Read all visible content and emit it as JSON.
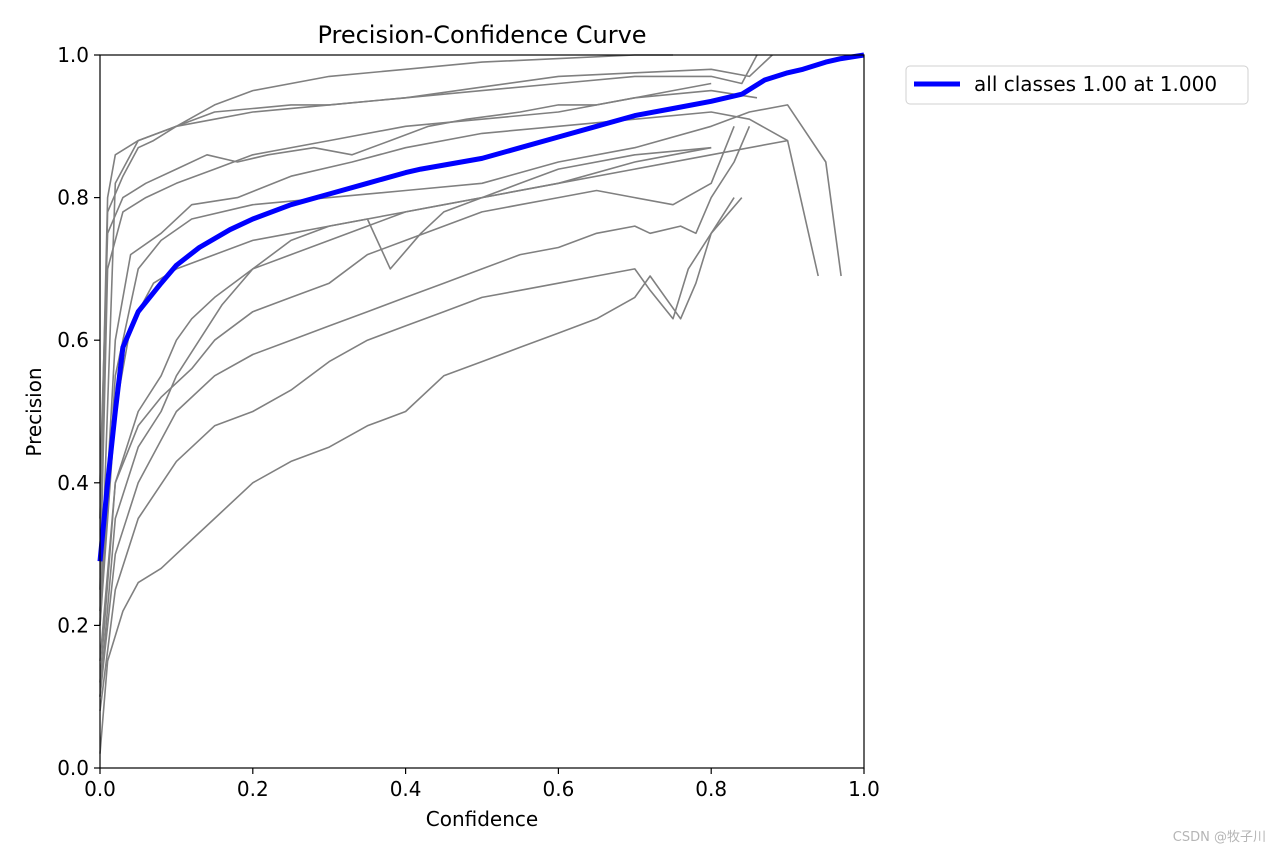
{
  "chart_data": {
    "type": "line",
    "title": "Precision-Confidence Curve",
    "xlabel": "Confidence",
    "ylabel": "Precision",
    "xlim": [
      0,
      1
    ],
    "ylim": [
      0,
      1
    ],
    "xticks": [
      "0.0",
      "0.2",
      "0.4",
      "0.6",
      "0.8",
      "1.0"
    ],
    "yticks": [
      "0.0",
      "0.2",
      "0.4",
      "0.6",
      "0.8",
      "1.0"
    ],
    "grid": false,
    "legend_position": "outside-top-right",
    "colors": {
      "class_lines": "#808080",
      "all_classes": "#0000ff"
    },
    "highlight_series": {
      "name": "all classes 1.00 at 1.000",
      "x": [
        0.0,
        0.01,
        0.02,
        0.03,
        0.05,
        0.08,
        0.1,
        0.13,
        0.17,
        0.2,
        0.25,
        0.3,
        0.35,
        0.4,
        0.42,
        0.5,
        0.55,
        0.6,
        0.65,
        0.7,
        0.75,
        0.8,
        0.84,
        0.87,
        0.9,
        0.92,
        0.95,
        0.97,
        1.0
      ],
      "y": [
        0.29,
        0.4,
        0.5,
        0.59,
        0.64,
        0.68,
        0.705,
        0.73,
        0.755,
        0.77,
        0.79,
        0.805,
        0.82,
        0.835,
        0.84,
        0.855,
        0.87,
        0.885,
        0.9,
        0.915,
        0.925,
        0.935,
        0.945,
        0.965,
        0.975,
        0.98,
        0.99,
        0.995,
        1.0
      ]
    },
    "class_series": [
      {
        "x": [
          0.0,
          0.01,
          0.03,
          0.05,
          0.07,
          0.1,
          0.15,
          0.2,
          0.25,
          0.3,
          0.4,
          0.5,
          0.6,
          0.7,
          0.8,
          0.84,
          0.86
        ],
        "y": [
          0.3,
          0.78,
          0.83,
          0.87,
          0.88,
          0.9,
          0.92,
          0.925,
          0.93,
          0.93,
          0.94,
          0.95,
          0.96,
          0.97,
          0.97,
          0.96,
          1.0
        ]
      },
      {
        "x": [
          0.0,
          0.01,
          0.02,
          0.05,
          0.1,
          0.15,
          0.2,
          0.3,
          0.4,
          0.5,
          0.6,
          0.7,
          0.8,
          0.85,
          0.88
        ],
        "y": [
          0.35,
          0.8,
          0.86,
          0.88,
          0.9,
          0.91,
          0.92,
          0.93,
          0.94,
          0.955,
          0.97,
          0.975,
          0.98,
          0.97,
          1.0
        ]
      },
      {
        "x": [
          0.0,
          0.02,
          0.05,
          0.1,
          0.15,
          0.2,
          0.3,
          0.4,
          0.5,
          0.6,
          0.7,
          0.75
        ],
        "y": [
          0.2,
          0.82,
          0.88,
          0.9,
          0.93,
          0.95,
          0.97,
          0.98,
          0.99,
          0.995,
          1.0,
          1.0
        ]
      },
      {
        "x": [
          0.0,
          0.01,
          0.03,
          0.06,
          0.1,
          0.15,
          0.2,
          0.3,
          0.4,
          0.5,
          0.6,
          0.7,
          0.8,
          0.86
        ],
        "y": [
          0.25,
          0.7,
          0.78,
          0.8,
          0.82,
          0.84,
          0.86,
          0.88,
          0.9,
          0.91,
          0.92,
          0.94,
          0.95,
          0.94
        ]
      },
      {
        "x": [
          0.0,
          0.02,
          0.04,
          0.08,
          0.12,
          0.18,
          0.25,
          0.33,
          0.4,
          0.5,
          0.6,
          0.7,
          0.8,
          0.85,
          0.9,
          0.94
        ],
        "y": [
          0.22,
          0.6,
          0.72,
          0.75,
          0.79,
          0.8,
          0.83,
          0.85,
          0.87,
          0.89,
          0.9,
          0.91,
          0.92,
          0.91,
          0.88,
          0.69
        ]
      },
      {
        "x": [
          0.0,
          0.02,
          0.05,
          0.08,
          0.12,
          0.2,
          0.3,
          0.4,
          0.5,
          0.6,
          0.7,
          0.8,
          0.85,
          0.9,
          0.95,
          0.97
        ],
        "y": [
          0.2,
          0.55,
          0.7,
          0.74,
          0.77,
          0.79,
          0.8,
          0.81,
          0.82,
          0.85,
          0.87,
          0.9,
          0.92,
          0.93,
          0.85,
          0.69
        ]
      },
      {
        "x": [
          0.0,
          0.02,
          0.04,
          0.07,
          0.1,
          0.15,
          0.2,
          0.25,
          0.3,
          0.4,
          0.5,
          0.6,
          0.7,
          0.8,
          0.9
        ],
        "y": [
          0.2,
          0.5,
          0.62,
          0.68,
          0.7,
          0.72,
          0.74,
          0.75,
          0.76,
          0.78,
          0.8,
          0.82,
          0.84,
          0.86,
          0.88
        ]
      },
      {
        "x": [
          0.0,
          0.02,
          0.05,
          0.08,
          0.1,
          0.12,
          0.15,
          0.2,
          0.25,
          0.3,
          0.35,
          0.4,
          0.45,
          0.5,
          0.6,
          0.7,
          0.75,
          0.8
        ],
        "y": [
          0.15,
          0.4,
          0.5,
          0.55,
          0.6,
          0.63,
          0.66,
          0.7,
          0.72,
          0.74,
          0.76,
          0.78,
          0.79,
          0.8,
          0.82,
          0.85,
          0.86,
          0.87
        ]
      },
      {
        "x": [
          0.0,
          0.02,
          0.05,
          0.08,
          0.1,
          0.13,
          0.16,
          0.2,
          0.25,
          0.3,
          0.35,
          0.38,
          0.42,
          0.45,
          0.5,
          0.55,
          0.6,
          0.7,
          0.8
        ],
        "y": [
          0.1,
          0.35,
          0.45,
          0.5,
          0.55,
          0.6,
          0.65,
          0.7,
          0.74,
          0.76,
          0.77,
          0.7,
          0.75,
          0.78,
          0.8,
          0.82,
          0.84,
          0.86,
          0.87
        ]
      },
      {
        "x": [
          0.0,
          0.02,
          0.05,
          0.08,
          0.12,
          0.15,
          0.2,
          0.25,
          0.3,
          0.35,
          0.4,
          0.45,
          0.5,
          0.55,
          0.6,
          0.65,
          0.7,
          0.75,
          0.8,
          0.83
        ],
        "y": [
          0.12,
          0.4,
          0.48,
          0.52,
          0.56,
          0.6,
          0.64,
          0.66,
          0.68,
          0.72,
          0.74,
          0.76,
          0.78,
          0.79,
          0.8,
          0.81,
          0.8,
          0.79,
          0.82,
          0.9
        ]
      },
      {
        "x": [
          0.0,
          0.02,
          0.05,
          0.1,
          0.15,
          0.2,
          0.25,
          0.3,
          0.35,
          0.4,
          0.45,
          0.5,
          0.55,
          0.6,
          0.65,
          0.7,
          0.72,
          0.76,
          0.78,
          0.8,
          0.83,
          0.85
        ],
        "y": [
          0.1,
          0.3,
          0.4,
          0.5,
          0.55,
          0.58,
          0.6,
          0.62,
          0.64,
          0.66,
          0.68,
          0.7,
          0.72,
          0.73,
          0.75,
          0.76,
          0.75,
          0.76,
          0.75,
          0.8,
          0.85,
          0.9
        ]
      },
      {
        "x": [
          0.0,
          0.02,
          0.05,
          0.1,
          0.15,
          0.2,
          0.25,
          0.3,
          0.35,
          0.4,
          0.45,
          0.5,
          0.55,
          0.6,
          0.65,
          0.7,
          0.72,
          0.75,
          0.77,
          0.8,
          0.84
        ],
        "y": [
          0.08,
          0.25,
          0.35,
          0.43,
          0.48,
          0.5,
          0.53,
          0.57,
          0.6,
          0.62,
          0.64,
          0.66,
          0.67,
          0.68,
          0.69,
          0.7,
          0.67,
          0.63,
          0.7,
          0.75,
          0.8
        ]
      },
      {
        "x": [
          0.0,
          0.01,
          0.03,
          0.05,
          0.08,
          0.1,
          0.15,
          0.2,
          0.25,
          0.3,
          0.35,
          0.4,
          0.45,
          0.5,
          0.55,
          0.6,
          0.65,
          0.7,
          0.72,
          0.76,
          0.78,
          0.8,
          0.83
        ],
        "y": [
          0.02,
          0.15,
          0.22,
          0.26,
          0.28,
          0.3,
          0.35,
          0.4,
          0.43,
          0.45,
          0.48,
          0.5,
          0.55,
          0.57,
          0.59,
          0.61,
          0.63,
          0.66,
          0.69,
          0.63,
          0.68,
          0.75,
          0.8
        ]
      },
      {
        "x": [
          0.0,
          0.01,
          0.03,
          0.06,
          0.1,
          0.14,
          0.18,
          0.22,
          0.28,
          0.33,
          0.38,
          0.43,
          0.48,
          0.55,
          0.6,
          0.65,
          0.7,
          0.75,
          0.8
        ],
        "y": [
          0.4,
          0.75,
          0.8,
          0.82,
          0.84,
          0.86,
          0.85,
          0.86,
          0.87,
          0.86,
          0.88,
          0.9,
          0.91,
          0.92,
          0.93,
          0.93,
          0.94,
          0.95,
          0.96
        ]
      }
    ]
  },
  "legend": {
    "label": "all classes 1.00 at 1.000"
  },
  "watermark": "CSDN @牧子川"
}
